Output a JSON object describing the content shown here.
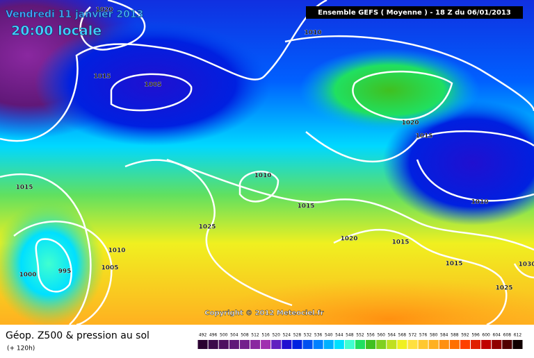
{
  "header": {
    "date": "Vendredi 11 janvier 2013",
    "time": "20:00 locale",
    "run": "Ensemble GEFS ( Moyenne )  -  18 Z du 06/01/2013"
  },
  "isobar_labels": [
    1020,
    1010,
    1015,
    1005,
    1020,
    1015,
    1010,
    1015,
    1015,
    1025,
    1010,
    1020,
    1015,
    1010,
    1005,
    995,
    1000,
    1015,
    1030,
    1025
  ],
  "copyright": "Copyright © 2012 Meteociel.fr",
  "footer": {
    "title": "Géop. Z500 & pression au sol",
    "lead": "(+ 120h)"
  },
  "legend": {
    "values": [
      492,
      496,
      500,
      504,
      508,
      512,
      516,
      520,
      524,
      528,
      532,
      536,
      540,
      544,
      548,
      552,
      556,
      560,
      564,
      568,
      572,
      576,
      580,
      584,
      588,
      592,
      596,
      600,
      604,
      608,
      612
    ],
    "colors": [
      "#2a0030",
      "#3c0a4a",
      "#4e1060",
      "#601878",
      "#74208c",
      "#8a28a0",
      "#a030b0",
      "#6020c0",
      "#2010d0",
      "#0020e0",
      "#0050f0",
      "#0080ff",
      "#00b0ff",
      "#00e0ff",
      "#40ffd0",
      "#20e060",
      "#40c020",
      "#80d020",
      "#c0e020",
      "#f0f020",
      "#ffe040",
      "#ffc830",
      "#ffb020",
      "#ff9010",
      "#ff7000",
      "#ff4000",
      "#e02000",
      "#c00000",
      "#900000",
      "#500000",
      "#100000"
    ]
  }
}
